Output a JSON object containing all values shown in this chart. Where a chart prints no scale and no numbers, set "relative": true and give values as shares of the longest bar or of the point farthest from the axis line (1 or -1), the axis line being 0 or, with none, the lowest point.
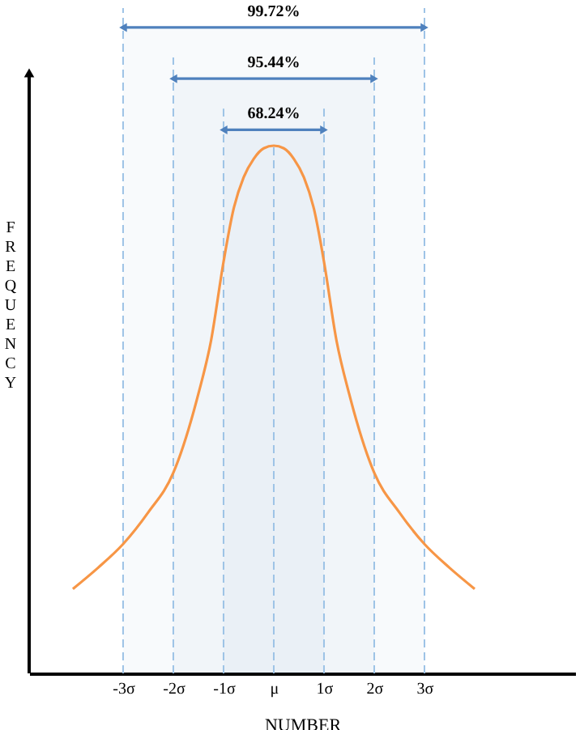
{
  "chart_data": {
    "type": "line",
    "relative": true,
    "xlabel": "NUMBER",
    "ylabel": "FREQUENCY",
    "x": [
      -4.0,
      -3.5,
      -3.0,
      -2.5,
      -2.0,
      -1.5,
      -1.25,
      -1.0,
      -0.8,
      -0.6,
      -0.4,
      -0.2,
      0,
      0.2,
      0.4,
      0.6,
      0.8,
      1.0,
      1.25,
      1.5,
      2.0,
      2.5,
      3.0,
      3.5,
      4.0
    ],
    "series": [
      {
        "color": "#f79646",
        "values": [
          0.16,
          0.2,
          0.245,
          0.305,
          0.38,
          0.53,
          0.63,
          0.78,
          0.88,
          0.94,
          0.975,
          0.995,
          1.0,
          0.995,
          0.975,
          0.94,
          0.88,
          0.78,
          0.63,
          0.53,
          0.38,
          0.305,
          0.245,
          0.2,
          0.16
        ]
      }
    ],
    "xlim": [
      -4.87,
      6.0
    ],
    "xticks": [
      {
        "value": -3,
        "label": "-3σ"
      },
      {
        "value": -2,
        "label": "-2σ"
      },
      {
        "value": -1,
        "label": "-1σ"
      },
      {
        "value": 0,
        "label": "μ"
      },
      {
        "value": 1,
        "label": "1σ"
      },
      {
        "value": 2,
        "label": "2σ"
      },
      {
        "value": 3,
        "label": "3σ"
      }
    ],
    "ref_lines": [
      {
        "axis": "x",
        "value": -3,
        "color": "#9dc3e6",
        "line_style": "dashed"
      },
      {
        "axis": "x",
        "value": -2,
        "color": "#9dc3e6",
        "line_style": "dashed"
      },
      {
        "axis": "x",
        "value": -1,
        "color": "#9dc3e6",
        "line_style": "dashed"
      },
      {
        "axis": "x",
        "value": 0,
        "color": "#9dc3e6",
        "line_style": "dashed"
      },
      {
        "axis": "x",
        "value": 1,
        "color": "#9dc3e6",
        "line_style": "dashed"
      },
      {
        "axis": "x",
        "value": 2,
        "color": "#9dc3e6",
        "line_style": "dashed"
      },
      {
        "axis": "x",
        "value": 3,
        "color": "#9dc3e6",
        "line_style": "dashed"
      }
    ],
    "bands": [
      {
        "axis": "x",
        "from": -1,
        "to": 1,
        "label": "68.24%",
        "color": "#4f81bd"
      },
      {
        "axis": "x",
        "from": -2,
        "to": 2,
        "label": "95.44%",
        "color": "#4f81bd"
      },
      {
        "axis": "x",
        "from": -3,
        "to": 3,
        "label": "99.72%",
        "color": "#4f81bd"
      }
    ],
    "grid": false,
    "marker": "none",
    "line_style": "solid"
  }
}
